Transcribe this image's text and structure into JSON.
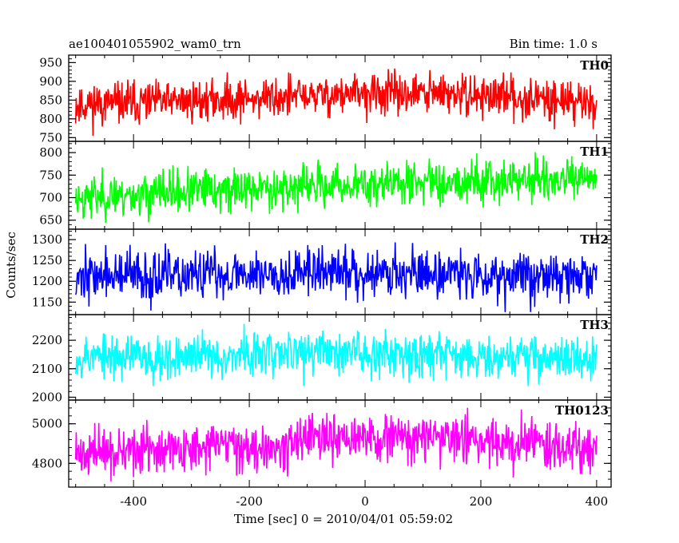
{
  "chart_data": {
    "type": "line",
    "title": "ae100401055902_wam0_trn",
    "subtitle": "Bin time: 1.0 s",
    "xlabel": "Time [sec] 0 = 2010/04/01 05:59:02",
    "ylabel": "Counts/sec",
    "xlim": [
      -512,
      425
    ],
    "x_range": [
      -500,
      400
    ],
    "xticks": [
      -400,
      -200,
      0,
      200,
      400
    ],
    "grid": false,
    "panels": [
      {
        "name": "TH0",
        "color": "#ff0000",
        "ylim": [
          740,
          970
        ],
        "yticks": [
          750,
          800,
          850,
          900,
          950
        ],
        "mean": 850,
        "noise": 28,
        "seed": 11,
        "trend": [
          -12,
          -6,
          4,
          14,
          18,
          8,
          -5
        ]
      },
      {
        "name": "TH1",
        "color": "#00ff00",
        "ylim": [
          630,
          825
        ],
        "yticks": [
          650,
          700,
          750,
          800
        ],
        "mean": 715,
        "noise": 24,
        "seed": 23,
        "trend": [
          -15,
          -5,
          5,
          12,
          20,
          25,
          22
        ]
      },
      {
        "name": "TH2",
        "color": "#0000ff",
        "ylim": [
          1120,
          1325
        ],
        "yticks": [
          1150,
          1200,
          1250,
          1300
        ],
        "mean": 1215,
        "noise": 30,
        "seed": 37,
        "trend": [
          0,
          -5,
          5,
          8,
          5,
          0,
          -5
        ]
      },
      {
        "name": "TH3",
        "color": "#00ffff",
        "ylim": [
          1990,
          2290
        ],
        "yticks": [
          2000,
          2100,
          2200
        ],
        "mean": 2145,
        "noise": 40,
        "seed": 53,
        "trend": [
          0,
          -5,
          5,
          15,
          10,
          0,
          -10
        ]
      },
      {
        "name": "TH0123",
        "color": "#ff00ff",
        "ylim": [
          4680,
          5120
        ],
        "yticks": [
          4800,
          5000
        ],
        "mean": 4880,
        "noise": 60,
        "seed": 71,
        "trend": [
          -30,
          -15,
          10,
          40,
          50,
          30,
          0
        ]
      }
    ]
  }
}
